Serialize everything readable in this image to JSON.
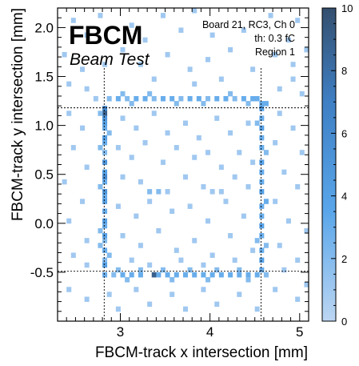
{
  "chart_data": {
    "type": "heatmap",
    "title": "",
    "logo": {
      "name": "FBCM",
      "subtitle": "Beam Test"
    },
    "info_lines": [
      "Board 21, RC3, Ch 0",
      "th: 0.3 fC",
      "Region 1"
    ],
    "xlabel": "FBCM-track x intersection [mm]",
    "ylabel": "FBCM-track y intersection [mm]",
    "xlim": [
      2.3,
      5.1
    ],
    "ylim": [
      -1.0,
      2.2
    ],
    "xticks": [
      {
        "v": 3,
        "label": "3"
      },
      {
        "v": 4,
        "label": "4"
      },
      {
        "v": 5,
        "label": "5"
      }
    ],
    "yticks": [
      {
        "v": -0.5,
        "label": "-0.5"
      },
      {
        "v": 0.0,
        "label": "0.0"
      },
      {
        "v": 0.5,
        "label": "0.5"
      },
      {
        "v": 1.0,
        "label": "1.0"
      },
      {
        "v": 1.5,
        "label": "1.5"
      },
      {
        "v": 2.0,
        "label": "2.0"
      }
    ],
    "colorbar": {
      "min": 0,
      "max": 10,
      "ticks": [
        {
          "v": 0,
          "label": "0"
        },
        {
          "v": 2,
          "label": "2"
        },
        {
          "v": 4,
          "label": "4"
        },
        {
          "v": 6,
          "label": "6"
        },
        {
          "v": 8,
          "label": "8"
        },
        {
          "v": 10,
          "label": "10"
        }
      ],
      "colors": [
        "#bcd6f2",
        "#5aa6ea",
        "#3f7fc4",
        "#344f6e"
      ]
    },
    "region_box": {
      "x_min": 2.82,
      "x_max": 4.57,
      "y_min": -0.49,
      "y_max": 1.18
    },
    "bin_width_x": 0.05,
    "bin_width_y": 0.05,
    "cells": [
      [
        2.8,
        1.15,
        6
      ],
      [
        2.8,
        1.1,
        9
      ],
      [
        2.8,
        1.05,
        5
      ],
      [
        2.8,
        1.0,
        4
      ],
      [
        2.8,
        0.95,
        3
      ],
      [
        2.8,
        0.85,
        4
      ],
      [
        2.8,
        0.8,
        3
      ],
      [
        2.8,
        0.7,
        2
      ],
      [
        2.8,
        0.6,
        5
      ],
      [
        2.8,
        0.5,
        4
      ],
      [
        2.8,
        0.45,
        6
      ],
      [
        2.8,
        0.4,
        3
      ],
      [
        2.8,
        0.3,
        5
      ],
      [
        2.8,
        0.25,
        3
      ],
      [
        2.8,
        0.2,
        4
      ],
      [
        2.8,
        0.1,
        3
      ],
      [
        2.8,
        0.0,
        4
      ],
      [
        2.8,
        -0.05,
        3
      ],
      [
        2.8,
        -0.15,
        4
      ],
      [
        2.8,
        -0.2,
        2
      ],
      [
        2.8,
        -0.3,
        3
      ],
      [
        2.8,
        -0.4,
        2
      ],
      [
        2.8,
        -0.45,
        4
      ],
      [
        2.8,
        -0.55,
        3
      ],
      [
        2.75,
        1.1,
        2
      ],
      [
        2.75,
        0.75,
        2
      ],
      [
        2.75,
        0.35,
        2
      ],
      [
        2.75,
        -0.1,
        2
      ],
      [
        2.75,
        -0.25,
        2
      ],
      [
        2.85,
        0.9,
        2
      ],
      [
        2.85,
        -0.35,
        2
      ],
      [
        4.55,
        1.2,
        3
      ],
      [
        4.55,
        1.15,
        4
      ],
      [
        4.55,
        1.05,
        3
      ],
      [
        4.55,
        0.95,
        4
      ],
      [
        4.55,
        0.85,
        3
      ],
      [
        4.55,
        0.75,
        3
      ],
      [
        4.55,
        0.6,
        4
      ],
      [
        4.55,
        0.5,
        3
      ],
      [
        4.55,
        0.4,
        3
      ],
      [
        4.55,
        0.3,
        4
      ],
      [
        4.55,
        0.15,
        3
      ],
      [
        4.55,
        0.05,
        3
      ],
      [
        4.55,
        -0.05,
        4
      ],
      [
        4.55,
        -0.15,
        3
      ],
      [
        4.55,
        -0.3,
        3
      ],
      [
        4.55,
        -0.4,
        4
      ],
      [
        4.55,
        -0.5,
        3
      ],
      [
        4.6,
        1.2,
        3
      ],
      [
        4.6,
        0.7,
        2
      ],
      [
        4.6,
        0.2,
        3
      ],
      [
        4.6,
        -0.25,
        2
      ],
      [
        4.6,
        -0.55,
        2
      ],
      [
        4.5,
        1.25,
        3
      ],
      [
        4.5,
        1.0,
        2
      ],
      [
        4.5,
        -0.2,
        2
      ],
      [
        2.85,
        1.25,
        2
      ],
      [
        2.95,
        1.25,
        3
      ],
      [
        3.05,
        1.25,
        2
      ],
      [
        3.15,
        1.25,
        3
      ],
      [
        3.25,
        1.25,
        3
      ],
      [
        3.35,
        1.25,
        2
      ],
      [
        3.45,
        1.25,
        3
      ],
      [
        3.55,
        1.25,
        3
      ],
      [
        3.65,
        1.25,
        2
      ],
      [
        3.75,
        1.25,
        3
      ],
      [
        3.85,
        1.25,
        3
      ],
      [
        3.95,
        1.25,
        2
      ],
      [
        4.05,
        1.25,
        3
      ],
      [
        4.15,
        1.25,
        3
      ],
      [
        4.25,
        1.25,
        2
      ],
      [
        4.35,
        1.25,
        3
      ],
      [
        4.45,
        1.25,
        3
      ],
      [
        3.0,
        1.3,
        2
      ],
      [
        3.3,
        1.3,
        2
      ],
      [
        3.6,
        1.2,
        2
      ],
      [
        3.9,
        1.2,
        2
      ],
      [
        4.2,
        1.3,
        2
      ],
      [
        4.4,
        1.2,
        2
      ],
      [
        3.1,
        1.2,
        2
      ],
      [
        2.9,
        -0.55,
        2
      ],
      [
        3.0,
        -0.55,
        3
      ],
      [
        3.1,
        -0.55,
        3
      ],
      [
        3.2,
        -0.55,
        3
      ],
      [
        3.35,
        -0.55,
        9
      ],
      [
        3.4,
        -0.55,
        3
      ],
      [
        3.5,
        -0.55,
        3
      ],
      [
        3.6,
        -0.55,
        3
      ],
      [
        3.7,
        -0.55,
        3
      ],
      [
        3.8,
        -0.55,
        3
      ],
      [
        3.9,
        -0.55,
        3
      ],
      [
        4.0,
        -0.55,
        3
      ],
      [
        4.1,
        -0.55,
        3
      ],
      [
        4.2,
        -0.55,
        3
      ],
      [
        4.3,
        -0.55,
        3
      ],
      [
        4.4,
        -0.55,
        3
      ],
      [
        4.5,
        -0.55,
        3
      ],
      [
        2.95,
        -0.5,
        2
      ],
      [
        3.2,
        -0.5,
        2
      ],
      [
        3.45,
        -0.5,
        2
      ],
      [
        3.75,
        -0.5,
        2
      ],
      [
        4.05,
        -0.5,
        2
      ],
      [
        4.3,
        -0.5,
        2
      ],
      [
        3.05,
        -0.6,
        2
      ],
      [
        3.55,
        -0.6,
        2
      ],
      [
        3.95,
        -0.6,
        2
      ],
      [
        4.4,
        -0.6,
        2
      ],
      [
        3.0,
        1.05,
        1
      ],
      [
        3.15,
        0.95,
        1
      ],
      [
        3.35,
        1.1,
        1
      ],
      [
        3.5,
        0.9,
        1
      ],
      [
        3.7,
        1.0,
        1
      ],
      [
        3.85,
        0.85,
        1
      ],
      [
        4.05,
        1.05,
        1
      ],
      [
        4.2,
        0.9,
        1
      ],
      [
        4.4,
        1.0,
        1
      ],
      [
        2.95,
        0.75,
        1
      ],
      [
        3.1,
        0.65,
        1
      ],
      [
        3.25,
        0.8,
        1
      ],
      [
        3.45,
        0.6,
        1
      ],
      [
        3.6,
        0.75,
        1
      ],
      [
        3.8,
        0.65,
        1
      ],
      [
        3.95,
        0.7,
        1
      ],
      [
        4.1,
        0.55,
        1
      ],
      [
        4.3,
        0.7,
        1
      ],
      [
        4.45,
        0.6,
        1
      ],
      [
        3.0,
        0.45,
        1
      ],
      [
        3.2,
        0.4,
        1
      ],
      [
        3.3,
        0.3,
        2
      ],
      [
        3.4,
        0.3,
        2
      ],
      [
        3.5,
        0.3,
        1
      ],
      [
        3.7,
        0.45,
        1
      ],
      [
        3.9,
        0.35,
        1
      ],
      [
        4.0,
        0.3,
        1
      ],
      [
        4.1,
        0.3,
        1
      ],
      [
        4.25,
        0.45,
        1
      ],
      [
        4.4,
        0.35,
        1
      ],
      [
        2.95,
        0.15,
        1
      ],
      [
        3.15,
        0.05,
        1
      ],
      [
        3.3,
        0.2,
        1
      ],
      [
        3.55,
        0.1,
        1
      ],
      [
        3.75,
        0.15,
        1
      ],
      [
        3.95,
        0.0,
        1
      ],
      [
        4.15,
        0.2,
        1
      ],
      [
        4.35,
        0.05,
        1
      ],
      [
        3.0,
        -0.15,
        1
      ],
      [
        3.2,
        -0.25,
        1
      ],
      [
        3.4,
        -0.1,
        1
      ],
      [
        3.6,
        -0.3,
        1
      ],
      [
        3.8,
        -0.2,
        1
      ],
      [
        4.0,
        -0.35,
        1
      ],
      [
        4.2,
        -0.15,
        1
      ],
      [
        4.45,
        -0.3,
        1
      ],
      [
        3.1,
        -0.4,
        1
      ],
      [
        3.3,
        -0.45,
        1
      ],
      [
        3.65,
        -0.4,
        1
      ],
      [
        3.9,
        -0.45,
        1
      ],
      [
        4.25,
        -0.4,
        1
      ],
      [
        2.45,
        2.05,
        1
      ],
      [
        2.6,
        1.9,
        1
      ],
      [
        2.75,
        2.1,
        1
      ],
      [
        3.1,
        2.0,
        1
      ],
      [
        3.25,
        1.85,
        1
      ],
      [
        3.45,
        2.1,
        1
      ],
      [
        3.65,
        1.95,
        1
      ],
      [
        3.8,
        2.15,
        1
      ],
      [
        4.0,
        1.9,
        1
      ],
      [
        4.35,
        1.95,
        1
      ],
      [
        4.65,
        2.1,
        1
      ],
      [
        4.85,
        1.85,
        1
      ],
      [
        4.95,
        2.05,
        1
      ],
      [
        2.35,
        1.7,
        1
      ],
      [
        2.55,
        1.55,
        1
      ],
      [
        2.8,
        1.6,
        1
      ],
      [
        3.0,
        1.75,
        1
      ],
      [
        3.2,
        1.6,
        1
      ],
      [
        3.5,
        1.7,
        1
      ],
      [
        3.75,
        1.55,
        1
      ],
      [
        3.95,
        1.65,
        1
      ],
      [
        4.2,
        1.75,
        1
      ],
      [
        4.45,
        1.55,
        1
      ],
      [
        4.7,
        1.7,
        1
      ],
      [
        4.9,
        1.6,
        1
      ],
      [
        5.05,
        1.75,
        1
      ],
      [
        2.4,
        1.4,
        1
      ],
      [
        2.6,
        1.35,
        1
      ],
      [
        2.7,
        1.25,
        1
      ],
      [
        3.35,
        1.45,
        1
      ],
      [
        3.8,
        1.4,
        1
      ],
      [
        4.1,
        1.45,
        1
      ],
      [
        4.75,
        1.35,
        1
      ],
      [
        4.9,
        1.45,
        1
      ],
      [
        5.0,
        1.3,
        1
      ],
      [
        2.4,
        1.1,
        1
      ],
      [
        2.55,
        0.95,
        1
      ],
      [
        2.45,
        0.75,
        1
      ],
      [
        2.6,
        0.55,
        1
      ],
      [
        2.35,
        0.4,
        1
      ],
      [
        2.55,
        0.2,
        1
      ],
      [
        2.4,
        0.0,
        1
      ],
      [
        2.6,
        -0.2,
        1
      ],
      [
        2.45,
        -0.35,
        1
      ],
      [
        2.6,
        -0.45,
        1
      ],
      [
        4.75,
        1.1,
        1
      ],
      [
        4.9,
        0.95,
        1
      ],
      [
        4.7,
        0.8,
        1
      ],
      [
        5.0,
        0.7,
        1
      ],
      [
        4.8,
        0.5,
        1
      ],
      [
        4.95,
        0.35,
        1
      ],
      [
        4.7,
        0.2,
        1
      ],
      [
        4.85,
        0.0,
        1
      ],
      [
        5.05,
        -0.1,
        1
      ],
      [
        4.75,
        -0.25,
        1
      ],
      [
        4.95,
        -0.4,
        1
      ],
      [
        4.8,
        -0.5,
        1
      ],
      [
        2.4,
        -0.7,
        1
      ],
      [
        2.6,
        -0.8,
        1
      ],
      [
        2.85,
        -0.75,
        1
      ],
      [
        2.95,
        -0.9,
        1
      ],
      [
        3.15,
        -0.7,
        1
      ],
      [
        3.3,
        -0.85,
        1
      ],
      [
        3.55,
        -0.75,
        1
      ],
      [
        3.7,
        -0.9,
        1
      ],
      [
        3.9,
        -0.7,
        1
      ],
      [
        4.05,
        -0.85,
        1
      ],
      [
        4.3,
        -0.75,
        1
      ],
      [
        4.5,
        -0.9,
        1
      ],
      [
        4.7,
        -0.7,
        1
      ],
      [
        4.95,
        -0.8,
        1
      ],
      [
        5.05,
        -0.65,
        1
      ]
    ]
  }
}
